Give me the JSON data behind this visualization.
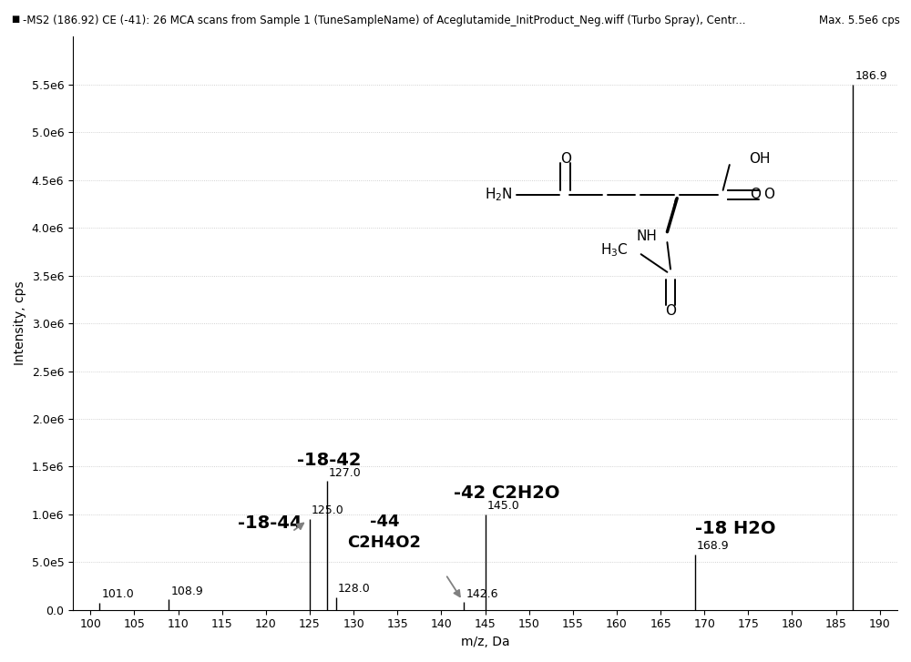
{
  "title_left": "-MS2 (186.92) CE (-41): 26 MCA scans from Sample 1 (TuneSampleName) of Aceglutamide_InitProduct_Neg.wiff (Turbo Spray), Centr...",
  "title_right": "Max. 5.5e6 cps",
  "xlabel": "m/z, Da",
  "ylabel": "Intensity, cps",
  "xlim": [
    98,
    192
  ],
  "ylim": [
    0,
    6000000
  ],
  "xticks": [
    100,
    105,
    110,
    115,
    120,
    125,
    130,
    135,
    140,
    145,
    150,
    155,
    160,
    165,
    170,
    175,
    180,
    185,
    190
  ],
  "yticks": [
    0,
    500000,
    1000000,
    1500000,
    2000000,
    2500000,
    3000000,
    3500000,
    4000000,
    4500000,
    5000000,
    5500000
  ],
  "ytick_labels": [
    "0.0",
    "5.0e5",
    "1.0e6",
    "1.5e6",
    "2.0e6",
    "2.5e6",
    "3.0e6",
    "3.5e6",
    "4.0e6",
    "4.5e6",
    "5.0e6",
    "5.5e6"
  ],
  "peaks": [
    {
      "mz": 101.0,
      "intensity": 75000,
      "label": "101.0"
    },
    {
      "mz": 108.9,
      "intensity": 110000,
      "label": "108.9"
    },
    {
      "mz": 125.0,
      "intensity": 950000,
      "label": "125.0"
    },
    {
      "mz": 127.0,
      "intensity": 1350000,
      "label": "127.0"
    },
    {
      "mz": 128.0,
      "intensity": 130000,
      "label": "128.0"
    },
    {
      "mz": 142.6,
      "intensity": 80000,
      "label": "142.6"
    },
    {
      "mz": 145.0,
      "intensity": 1000000,
      "label": "145.0"
    },
    {
      "mz": 168.9,
      "intensity": 580000,
      "label": "168.9"
    },
    {
      "mz": 186.9,
      "intensity": 5500000,
      "label": "186.9"
    }
  ],
  "background_color": "#ffffff",
  "peak_color": "#000000",
  "title_fontsize": 8.5,
  "axis_fontsize": 10,
  "tick_fontsize": 9,
  "label_fontsize": 9
}
